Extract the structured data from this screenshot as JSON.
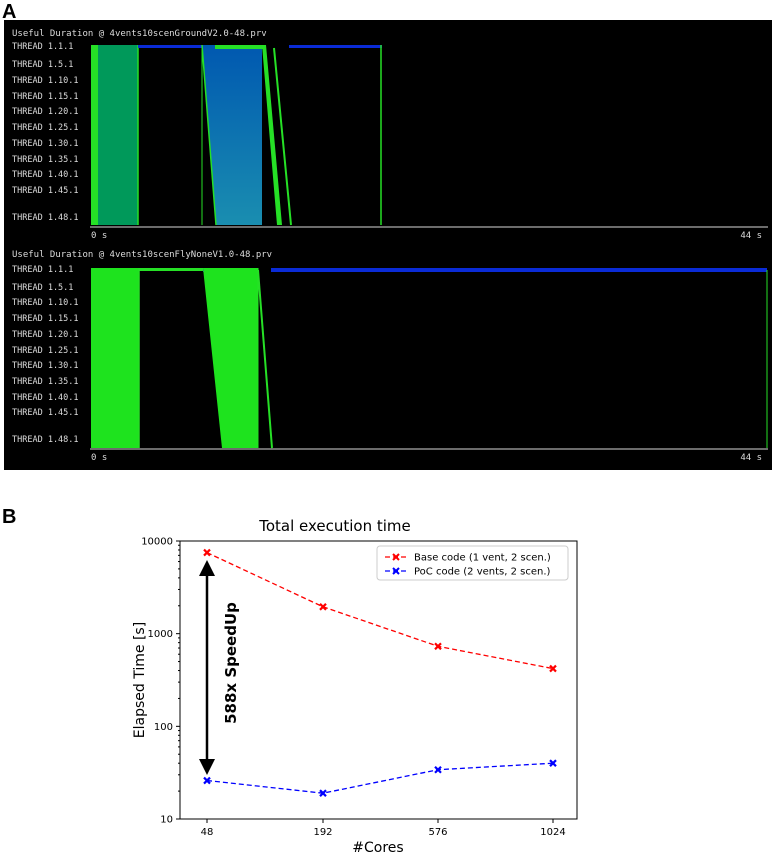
{
  "panels": {
    "a": "A",
    "b": "B"
  },
  "traces": [
    {
      "title": "Useful Duration @ 4vents10scenGroundV2.0-48.prv",
      "threads": [
        "THREAD 1.1.1",
        "THREAD 1.5.1",
        "THREAD 1.10.1",
        "THREAD 1.15.1",
        "THREAD 1.20.1",
        "THREAD 1.25.1",
        "THREAD 1.30.1",
        "THREAD 1.35.1",
        "THREAD 1.40.1",
        "THREAD 1.45.1",
        "THREAD 1.48.1"
      ],
      "time_start": "0 s",
      "time_end": "44 s"
    },
    {
      "title": "Useful Duration @ 4vents10scenFlyNoneV1.0-48.prv",
      "threads": [
        "THREAD 1.1.1",
        "THREAD 1.5.1",
        "THREAD 1.10.1",
        "THREAD 1.15.1",
        "THREAD 1.20.1",
        "THREAD 1.25.1",
        "THREAD 1.30.1",
        "THREAD 1.35.1",
        "THREAD 1.40.1",
        "THREAD 1.45.1",
        "THREAD 1.48.1"
      ],
      "time_start": "0 s",
      "time_end": "44 s"
    }
  ],
  "chart_data": {
    "type": "line",
    "title": "Total execution time",
    "xlabel": "#Cores",
    "ylabel": "Elapsed Time [s]",
    "yscale": "log",
    "ylim": [
      10,
      10000
    ],
    "categories": [
      "48",
      "192",
      "576",
      "1024"
    ],
    "yticks": [
      "10",
      "100",
      "1000",
      "10000"
    ],
    "series": [
      {
        "name": "Base code (1 vent, 2 scen.)",
        "color": "#ff0000",
        "values": [
          7500,
          1950,
          730,
          420
        ]
      },
      {
        "name": "PoC code (2 vents, 2 scen.)",
        "color": "#0000ff",
        "values": [
          26,
          19,
          34,
          40
        ]
      }
    ],
    "annotation": "588x SpeedUp",
    "legend": "top-right"
  }
}
